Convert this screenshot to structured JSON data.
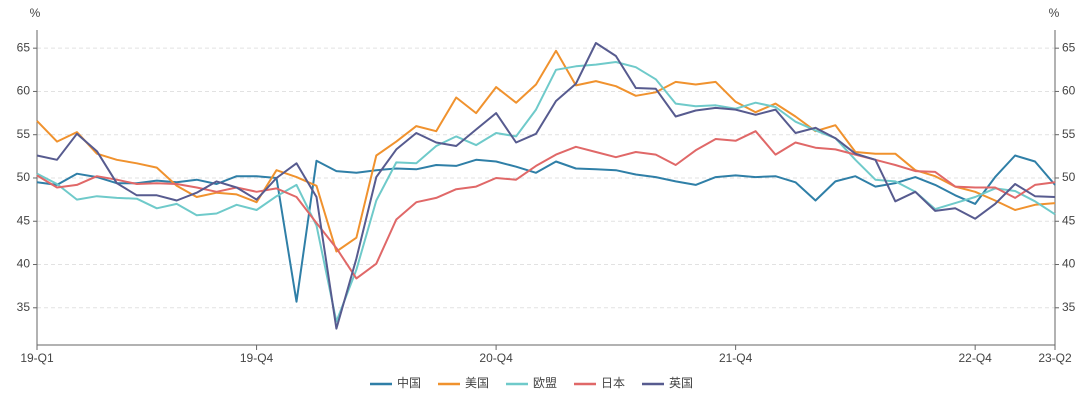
{
  "chart_data": {
    "type": "line",
    "ylabel": "%",
    "y2label": "%",
    "categories": [
      "19-Q1",
      null,
      null,
      null,
      null,
      null,
      null,
      null,
      null,
      null,
      null,
      "19-Q4",
      null,
      null,
      null,
      null,
      null,
      null,
      null,
      null,
      null,
      null,
      null,
      "20-Q4",
      null,
      null,
      null,
      null,
      null,
      null,
      null,
      null,
      null,
      null,
      null,
      "21-Q4",
      null,
      null,
      null,
      null,
      null,
      null,
      null,
      null,
      null,
      null,
      null,
      "22-Q4",
      null,
      null,
      null,
      "23-Q2"
    ],
    "ylim": [
      30.7,
      67.1
    ],
    "yticks": [
      35,
      40,
      45,
      50,
      55,
      60,
      65
    ],
    "y2lim": [
      30.7,
      67.1
    ],
    "y2ticks": [
      35,
      40,
      45,
      50,
      55,
      60,
      65
    ],
    "grid": true,
    "legend": "bottom",
    "series": [
      {
        "name": "中国",
        "color": "#2f7fa7",
        "values": [
          49.5,
          49.2,
          50.5,
          50.1,
          49.4,
          49.4,
          49.7,
          49.5,
          49.8,
          49.3,
          50.2,
          50.2,
          50.0,
          35.7,
          52.0,
          50.8,
          50.6,
          50.9,
          51.1,
          51.0,
          51.5,
          51.4,
          52.1,
          51.9,
          51.3,
          50.6,
          51.9,
          51.1,
          51.0,
          50.9,
          50.4,
          50.1,
          49.6,
          49.2,
          50.1,
          50.3,
          50.1,
          50.2,
          49.5,
          47.4,
          49.6,
          50.2,
          49.0,
          49.4,
          50.1,
          49.2,
          48.0,
          47.0,
          50.1,
          52.6,
          51.9,
          49.2
        ]
      },
      {
        "name": "美国",
        "color": "#f0922e",
        "values": [
          56.6,
          54.2,
          55.3,
          52.8,
          52.1,
          51.7,
          51.2,
          49.1,
          47.8,
          48.3,
          48.1,
          47.2,
          50.9,
          50.1,
          49.1,
          41.5,
          43.1,
          52.6,
          54.2,
          56.0,
          55.4,
          59.3,
          57.5,
          60.5,
          58.7,
          60.8,
          64.7,
          60.7,
          61.2,
          60.6,
          59.5,
          59.9,
          61.1,
          60.8,
          61.1,
          58.8,
          57.6,
          58.6,
          57.1,
          55.4,
          56.1,
          53.0,
          52.8,
          52.8,
          50.9,
          50.2,
          49.0,
          48.4,
          47.4,
          46.3,
          46.9,
          47.1
        ]
      },
      {
        "name": "欧盟",
        "color": "#6fcaca",
        "values": [
          50.5,
          49.3,
          47.5,
          47.9,
          47.7,
          47.6,
          46.5,
          47.0,
          45.7,
          45.9,
          46.9,
          46.3,
          47.9,
          49.2,
          44.5,
          33.4,
          39.4,
          47.4,
          51.8,
          51.7,
          53.7,
          54.8,
          53.8,
          55.2,
          54.8,
          57.9,
          62.5,
          62.9,
          63.1,
          63.4,
          62.8,
          61.4,
          58.6,
          58.3,
          58.4,
          58.0,
          58.7,
          58.2,
          56.5,
          55.5,
          54.6,
          52.1,
          49.8,
          49.6,
          48.4,
          46.4,
          47.1,
          47.8,
          48.8,
          48.5,
          47.3,
          45.8
        ]
      },
      {
        "name": "日本",
        "color": "#e06868",
        "values": [
          50.3,
          48.9,
          49.2,
          50.2,
          49.8,
          49.3,
          49.4,
          49.3,
          48.9,
          48.4,
          48.9,
          48.4,
          48.8,
          47.8,
          44.8,
          41.9,
          38.4,
          40.1,
          45.2,
          47.2,
          47.7,
          48.7,
          49.0,
          50.0,
          49.8,
          51.4,
          52.7,
          53.6,
          53.0,
          52.4,
          53.0,
          52.7,
          51.5,
          53.2,
          54.5,
          54.3,
          55.4,
          52.7,
          54.1,
          53.5,
          53.3,
          52.7,
          52.1,
          51.5,
          50.8,
          50.7,
          49.0,
          48.9,
          48.9,
          47.7,
          49.2,
          49.5
        ]
      },
      {
        "name": "英国",
        "color": "#575b8f",
        "values": [
          52.6,
          52.1,
          55.1,
          53.1,
          49.4,
          48.0,
          48.0,
          47.4,
          48.3,
          49.6,
          48.9,
          47.5,
          50.0,
          51.7,
          47.8,
          32.6,
          40.7,
          50.1,
          53.3,
          55.2,
          54.1,
          53.7,
          55.6,
          57.5,
          54.1,
          55.1,
          58.9,
          60.9,
          65.6,
          64.1,
          60.4,
          60.3,
          57.1,
          57.8,
          58.1,
          57.9,
          57.3,
          57.9,
          55.2,
          55.8,
          54.6,
          52.8,
          52.1,
          47.3,
          48.4,
          46.2,
          46.5,
          45.3,
          47.0,
          49.3,
          47.9,
          47.8
        ]
      }
    ]
  }
}
